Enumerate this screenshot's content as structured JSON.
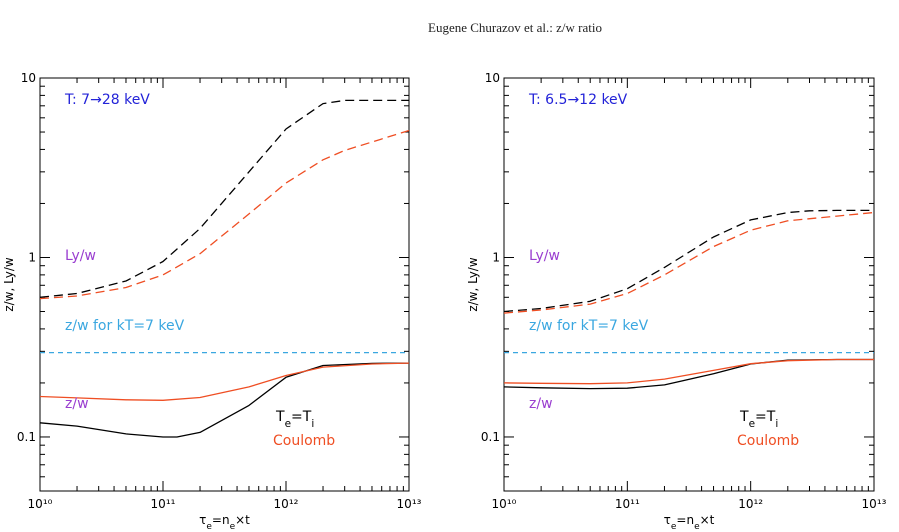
{
  "header": {
    "running_title": "Eugene Churazov  et al.:  z/w ratio"
  },
  "colors": {
    "black_series": "#000000",
    "coulomb_series": "#ef4e23",
    "reference_line": "#3aa7e0",
    "temperature_label": "#2323d8",
    "lyw_zw_label": "#9a3ed0",
    "coulomb_label": "#ef4e23"
  },
  "chart_data": [
    {
      "type": "line",
      "xscale": "log",
      "yscale": "log",
      "xlim": [
        10000000000.0,
        10000000000000.0
      ],
      "ylim": [
        0.05,
        10
      ],
      "xlabel": "τe=ne×t",
      "ylabel": "z/w,  Ly/w",
      "x_ticks": [
        "10¹⁰",
        "10¹¹",
        "10¹²",
        "10¹³"
      ],
      "y_ticks": [
        "0.1",
        "1",
        "10"
      ],
      "annotations": {
        "temperature": "T:  7→28  keV",
        "lyw": "Ly/w",
        "zw_ref": "z/w  for  kT=7  keV",
        "zw": "z/w",
        "te_ti": "Te=Ti",
        "coulomb": "Coulomb"
      },
      "reference_value": 0.295,
      "series": [
        {
          "key": "lyw_te_ti",
          "style": "dashed",
          "color": "black",
          "x": [
            10000000000.0,
            20000000000.0,
            50000000000.0,
            100000000000.0,
            200000000000.0,
            500000000000.0,
            1000000000000.0,
            2000000000000.0,
            3000000000000.0,
            5000000000000.0,
            10000000000000.0
          ],
          "y": [
            0.6,
            0.63,
            0.74,
            0.95,
            1.45,
            3.0,
            5.2,
            7.2,
            7.5,
            7.5,
            7.5
          ]
        },
        {
          "key": "lyw_coulomb",
          "style": "dashed",
          "color": "coulomb",
          "x": [
            10000000000.0,
            20000000000.0,
            50000000000.0,
            100000000000.0,
            200000000000.0,
            500000000000.0,
            1000000000000.0,
            2000000000000.0,
            3000000000000.0,
            5000000000000.0,
            10000000000000.0
          ],
          "y": [
            0.59,
            0.61,
            0.68,
            0.8,
            1.05,
            1.75,
            2.6,
            3.5,
            3.95,
            4.4,
            5.1
          ]
        },
        {
          "key": "reference",
          "style": "dashed",
          "color": "reference",
          "x": [
            10000000000.0,
            10000000000000.0
          ],
          "y": [
            0.295,
            0.295
          ]
        },
        {
          "key": "zw_te_ti",
          "style": "solid",
          "color": "black",
          "x": [
            10000000000.0,
            20000000000.0,
            50000000000.0,
            100000000000.0,
            130000000000.0,
            200000000000.0,
            500000000000.0,
            1000000000000.0,
            2000000000000.0,
            5000000000000.0,
            10000000000000.0
          ],
          "y": [
            0.12,
            0.115,
            0.104,
            0.1,
            0.1,
            0.106,
            0.15,
            0.215,
            0.25,
            0.257,
            0.258
          ]
        },
        {
          "key": "zw_coulomb",
          "style": "solid",
          "color": "coulomb",
          "x": [
            10000000000.0,
            20000000000.0,
            50000000000.0,
            100000000000.0,
            200000000000.0,
            500000000000.0,
            1000000000000.0,
            2000000000000.0,
            5000000000000.0,
            10000000000000.0
          ],
          "y": [
            0.168,
            0.165,
            0.161,
            0.16,
            0.166,
            0.19,
            0.22,
            0.245,
            0.255,
            0.258
          ]
        }
      ]
    },
    {
      "type": "line",
      "xscale": "log",
      "yscale": "log",
      "xlim": [
        10000000000.0,
        10000000000000.0
      ],
      "ylim": [
        0.05,
        10
      ],
      "xlabel": "τe=ne×t",
      "ylabel": "z/w,  Ly/w",
      "x_ticks": [
        "10¹⁰",
        "10¹¹",
        "10¹²",
        "10¹³"
      ],
      "y_ticks": [
        "0.1",
        "1",
        "10"
      ],
      "annotations": {
        "temperature": "T:  6.5→12  keV",
        "lyw": "Ly/w",
        "zw_ref": "z/w  for  kT=7  keV",
        "zw": "z/w",
        "te_ti": "Te=Ti",
        "coulomb": "Coulomb"
      },
      "reference_value": 0.295,
      "series": [
        {
          "key": "lyw_te_ti",
          "style": "dashed",
          "color": "black",
          "x": [
            10000000000.0,
            20000000000.0,
            50000000000.0,
            100000000000.0,
            200000000000.0,
            500000000000.0,
            1000000000000.0,
            2000000000000.0,
            3000000000000.0,
            5000000000000.0,
            10000000000000.0
          ],
          "y": [
            0.5,
            0.52,
            0.57,
            0.67,
            0.88,
            1.3,
            1.62,
            1.78,
            1.82,
            1.83,
            1.83
          ]
        },
        {
          "key": "lyw_coulomb",
          "style": "dashed",
          "color": "coulomb",
          "x": [
            10000000000.0,
            20000000000.0,
            50000000000.0,
            100000000000.0,
            200000000000.0,
            500000000000.0,
            1000000000000.0,
            2000000000000.0,
            5000000000000.0,
            10000000000000.0
          ],
          "y": [
            0.49,
            0.51,
            0.55,
            0.63,
            0.8,
            1.15,
            1.42,
            1.6,
            1.7,
            1.78
          ]
        },
        {
          "key": "reference",
          "style": "dashed",
          "color": "reference",
          "x": [
            10000000000.0,
            10000000000000.0
          ],
          "y": [
            0.295,
            0.295
          ]
        },
        {
          "key": "zw_te_ti",
          "style": "solid",
          "color": "black",
          "x": [
            10000000000.0,
            20000000000.0,
            50000000000.0,
            100000000000.0,
            200000000000.0,
            500000000000.0,
            1000000000000.0,
            2000000000000.0,
            5000000000000.0,
            10000000000000.0
          ],
          "y": [
            0.19,
            0.188,
            0.186,
            0.187,
            0.195,
            0.225,
            0.255,
            0.268,
            0.27,
            0.27
          ]
        },
        {
          "key": "zw_coulomb",
          "style": "solid",
          "color": "coulomb",
          "x": [
            10000000000.0,
            20000000000.0,
            50000000000.0,
            100000000000.0,
            200000000000.0,
            500000000000.0,
            1000000000000.0,
            2000000000000.0,
            5000000000000.0,
            10000000000000.0
          ],
          "y": [
            0.2,
            0.199,
            0.198,
            0.2,
            0.21,
            0.235,
            0.256,
            0.266,
            0.27,
            0.27
          ]
        }
      ]
    }
  ]
}
